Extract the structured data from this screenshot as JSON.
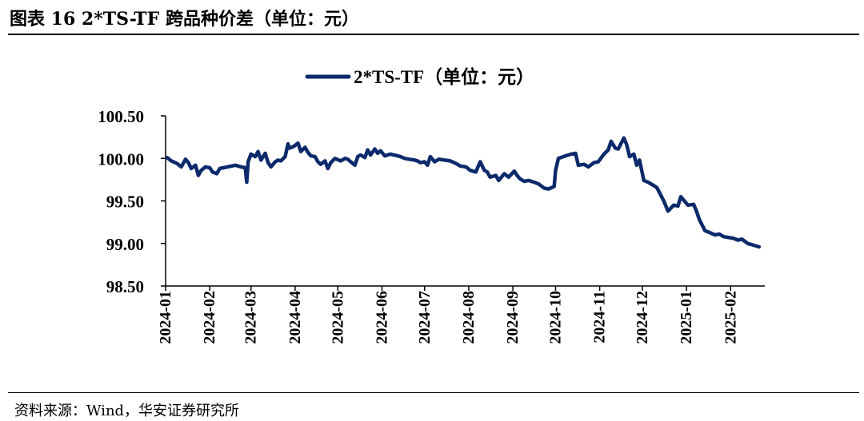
{
  "figure_title": "图表 16 2*TS-TF 跨品种价差（单位：元）",
  "source_note": "资料来源：Wind，华安证券研究所",
  "colors": {
    "series": "#0c2a6b",
    "axis": "#000000",
    "rule": "#000000"
  },
  "chart_data": {
    "type": "line",
    "legend_position": "top-center",
    "grid": false,
    "ylim": [
      98.5,
      100.5
    ],
    "yticks": [
      "98.50",
      "99.00",
      "99.50",
      "100.00",
      "100.50"
    ],
    "ytick_values": [
      98.5,
      99.0,
      99.5,
      100.0,
      100.5
    ],
    "xticks": [
      "2024-01",
      "2024-02",
      "2024-03",
      "2024-04",
      "2024-05",
      "2024-06",
      "2024-07",
      "2024-08",
      "2024-09",
      "2024-10",
      "2024-11",
      "2024-12",
      "2025-01",
      "2025-02"
    ],
    "xlim": [
      "2024-01-01",
      "2025-02-25"
    ],
    "series": [
      {
        "name": "2*TS-TF（单位：元）",
        "color": "#0c2a6b",
        "points": [
          [
            "2024-01-02",
            100.01
          ],
          [
            "2024-01-05",
            99.97
          ],
          [
            "2024-01-09",
            99.94
          ],
          [
            "2024-01-12",
            99.9
          ],
          [
            "2024-01-15",
            99.99
          ],
          [
            "2024-01-17",
            99.95
          ],
          [
            "2024-01-19",
            99.88
          ],
          [
            "2024-01-22",
            99.92
          ],
          [
            "2024-01-24",
            99.8
          ],
          [
            "2024-01-26",
            99.86
          ],
          [
            "2024-01-29",
            99.9
          ],
          [
            "2024-02-01",
            99.89
          ],
          [
            "2024-02-03",
            99.84
          ],
          [
            "2024-02-06",
            99.82
          ],
          [
            "2024-02-08",
            99.88
          ],
          [
            "2024-02-19",
            99.92
          ],
          [
            "2024-02-23",
            99.9
          ],
          [
            "2024-02-26",
            99.89
          ],
          [
            "2024-02-27",
            99.72
          ],
          [
            "2024-02-28",
            99.96
          ],
          [
            "2024-03-01",
            100.05
          ],
          [
            "2024-03-04",
            100.02
          ],
          [
            "2024-03-06",
            100.08
          ],
          [
            "2024-03-08",
            99.98
          ],
          [
            "2024-03-11",
            100.06
          ],
          [
            "2024-03-13",
            99.95
          ],
          [
            "2024-03-15",
            99.9
          ],
          [
            "2024-03-18",
            99.96
          ],
          [
            "2024-03-20",
            99.98
          ],
          [
            "2024-03-22",
            99.97
          ],
          [
            "2024-03-25",
            100.02
          ],
          [
            "2024-03-27",
            100.17
          ],
          [
            "2024-03-28",
            100.12
          ],
          [
            "2024-03-31",
            100.14
          ],
          [
            "2024-04-03",
            100.18
          ],
          [
            "2024-04-05",
            100.08
          ],
          [
            "2024-04-08",
            100.13
          ],
          [
            "2024-04-10",
            100.07
          ],
          [
            "2024-04-12",
            100.03
          ],
          [
            "2024-04-15",
            100.02
          ],
          [
            "2024-04-17",
            99.96
          ],
          [
            "2024-04-19",
            99.93
          ],
          [
            "2024-04-22",
            99.97
          ],
          [
            "2024-04-24",
            99.88
          ],
          [
            "2024-04-26",
            99.95
          ],
          [
            "2024-04-29",
            100.0
          ],
          [
            "2024-05-03",
            99.97
          ],
          [
            "2024-05-06",
            100.0
          ],
          [
            "2024-05-08",
            99.99
          ],
          [
            "2024-05-10",
            99.96
          ],
          [
            "2024-05-13",
            99.92
          ],
          [
            "2024-05-15",
            100.02
          ],
          [
            "2024-05-17",
            100.04
          ],
          [
            "2024-05-20",
            100.01
          ],
          [
            "2024-05-22",
            100.1
          ],
          [
            "2024-05-24",
            100.04
          ],
          [
            "2024-05-27",
            100.11
          ],
          [
            "2024-05-29",
            100.06
          ],
          [
            "2024-05-31",
            100.09
          ],
          [
            "2024-06-03",
            100.03
          ],
          [
            "2024-06-05",
            100.04
          ],
          [
            "2024-06-07",
            100.05
          ],
          [
            "2024-06-12",
            100.03
          ],
          [
            "2024-06-14",
            100.02
          ],
          [
            "2024-06-17",
            100.0
          ],
          [
            "2024-06-20",
            99.99
          ],
          [
            "2024-06-24",
            99.98
          ],
          [
            "2024-06-26",
            99.97
          ],
          [
            "2024-06-28",
            99.95
          ],
          [
            "2024-07-01",
            99.96
          ],
          [
            "2024-07-03",
            99.92
          ],
          [
            "2024-07-05",
            100.02
          ],
          [
            "2024-07-08",
            99.96
          ],
          [
            "2024-07-11",
            99.99
          ],
          [
            "2024-07-15",
            99.98
          ],
          [
            "2024-07-19",
            99.97
          ],
          [
            "2024-07-23",
            99.94
          ],
          [
            "2024-07-26",
            99.91
          ],
          [
            "2024-07-30",
            99.9
          ],
          [
            "2024-08-02",
            99.86
          ],
          [
            "2024-08-06",
            99.84
          ],
          [
            "2024-08-08",
            99.92
          ],
          [
            "2024-08-09",
            99.96
          ],
          [
            "2024-08-12",
            99.86
          ],
          [
            "2024-08-14",
            99.84
          ],
          [
            "2024-08-16",
            99.78
          ],
          [
            "2024-08-20",
            99.8
          ],
          [
            "2024-08-22",
            99.74
          ],
          [
            "2024-08-26",
            99.82
          ],
          [
            "2024-08-29",
            99.78
          ],
          [
            "2024-09-02",
            99.85
          ],
          [
            "2024-09-04",
            99.8
          ],
          [
            "2024-09-06",
            99.76
          ],
          [
            "2024-09-09",
            99.73
          ],
          [
            "2024-09-12",
            99.74
          ],
          [
            "2024-09-16",
            99.72
          ],
          [
            "2024-09-19",
            99.7
          ],
          [
            "2024-09-23",
            99.65
          ],
          [
            "2024-09-26",
            99.64
          ],
          [
            "2024-09-30",
            99.67
          ],
          [
            "2024-10-01",
            99.86
          ],
          [
            "2024-10-03",
            100.0
          ],
          [
            "2024-10-08",
            100.03
          ],
          [
            "2024-10-12",
            100.05
          ],
          [
            "2024-10-15",
            100.06
          ],
          [
            "2024-10-17",
            99.92
          ],
          [
            "2024-10-21",
            99.93
          ],
          [
            "2024-10-24",
            99.9
          ],
          [
            "2024-10-28",
            99.95
          ],
          [
            "2024-10-31",
            99.96
          ],
          [
            "2024-11-04",
            100.05
          ],
          [
            "2024-11-07",
            100.1
          ],
          [
            "2024-11-09",
            100.2
          ],
          [
            "2024-11-12",
            100.12
          ],
          [
            "2024-11-14",
            100.11
          ],
          [
            "2024-11-18",
            100.24
          ],
          [
            "2024-11-20",
            100.16
          ],
          [
            "2024-11-22",
            100.02
          ],
          [
            "2024-11-25",
            100.05
          ],
          [
            "2024-11-27",
            99.92
          ],
          [
            "2024-11-29",
            99.98
          ],
          [
            "2024-12-02",
            99.74
          ],
          [
            "2024-12-05",
            99.72
          ],
          [
            "2024-12-09",
            99.68
          ],
          [
            "2024-12-11",
            99.66
          ],
          [
            "2024-12-12",
            99.63
          ],
          [
            "2024-12-16",
            99.5
          ],
          [
            "2024-12-19",
            99.38
          ],
          [
            "2024-12-23",
            99.45
          ],
          [
            "2024-12-26",
            99.44
          ],
          [
            "2024-12-28",
            99.55
          ],
          [
            "2025-01-02",
            99.45
          ],
          [
            "2025-01-06",
            99.46
          ],
          [
            "2025-01-08",
            99.38
          ],
          [
            "2025-01-10",
            99.28
          ],
          [
            "2025-01-14",
            99.15
          ],
          [
            "2025-01-17",
            99.13
          ],
          [
            "2025-01-21",
            99.1
          ],
          [
            "2025-01-24",
            99.11
          ],
          [
            "2025-01-27",
            99.08
          ],
          [
            "2025-02-03",
            99.06
          ],
          [
            "2025-02-06",
            99.04
          ],
          [
            "2025-02-09",
            99.05
          ],
          [
            "2025-02-13",
            99.0
          ],
          [
            "2025-02-17",
            98.98
          ],
          [
            "2025-02-21",
            98.96
          ]
        ]
      }
    ]
  }
}
